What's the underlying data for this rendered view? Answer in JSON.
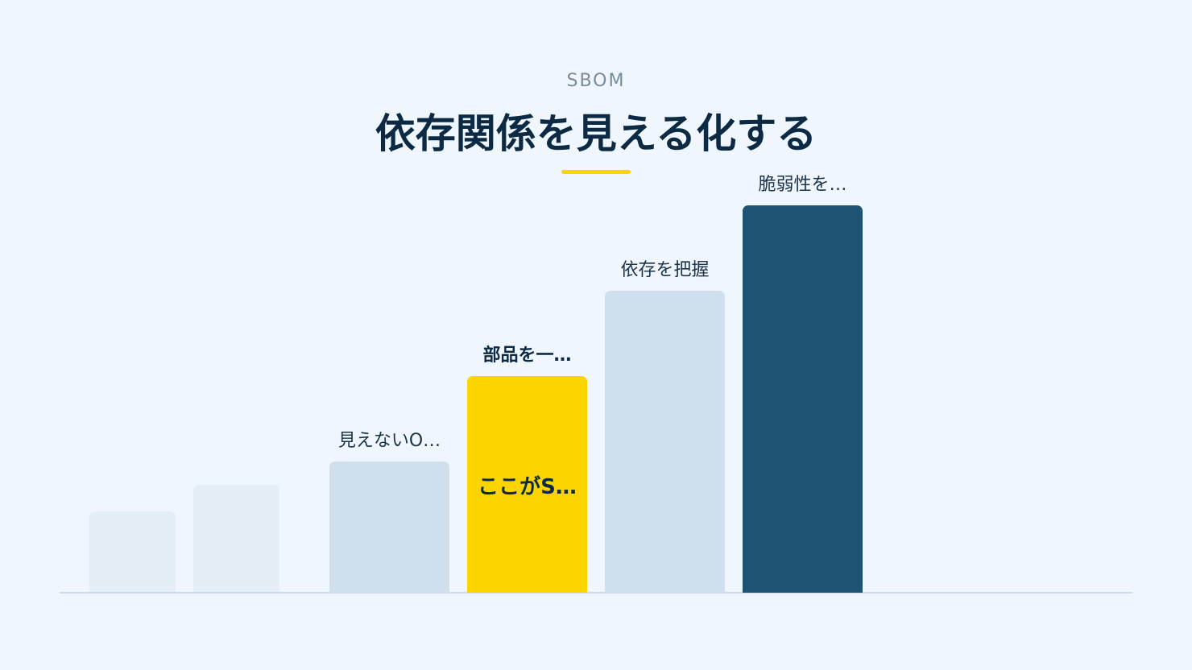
{
  "header": {
    "eyebrow": "SBOM",
    "title": "依存関係を見える化する"
  },
  "steps": [
    {
      "label": "見えないO…"
    },
    {
      "label": "部品を一…",
      "inner_text": "ここがS…"
    },
    {
      "label": "依存を把握"
    },
    {
      "label": "脆弱性を…"
    }
  ]
}
